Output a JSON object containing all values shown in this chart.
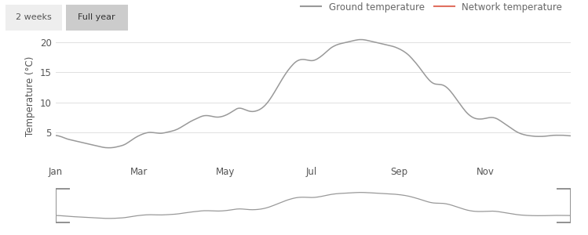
{
  "ylabel": "Temperature (°C)",
  "month_labels": [
    "Jan",
    "Mar",
    "May",
    "Jul",
    "Sep",
    "Nov"
  ],
  "month_positions": [
    0,
    59,
    120,
    181,
    243,
    304
  ],
  "ylim": [
    0,
    22
  ],
  "yticks": [
    5,
    10,
    15,
    20
  ],
  "line_color": "#999999",
  "network_line_color": "#e07060",
  "background_color": "#ffffff",
  "button1_label": "2 weeks",
  "button2_label": "Full year",
  "legend_ground": "Ground temperature",
  "legend_network": "Network temperature",
  "ground_temp": [
    4.5,
    4.4,
    4.3,
    4.1,
    3.9,
    3.8,
    3.7,
    3.6,
    3.5,
    3.4,
    3.3,
    3.2,
    3.1,
    3.0,
    2.9,
    2.8,
    2.7,
    2.6,
    2.5,
    2.4,
    2.4,
    2.4,
    2.4,
    2.5,
    2.6,
    2.7,
    2.8,
    3.0,
    3.3,
    3.6,
    3.9,
    4.2,
    4.4,
    4.6,
    4.8,
    4.9,
    5.0,
    5.0,
    4.9,
    4.9,
    4.8,
    4.8,
    4.9,
    5.0,
    5.1,
    5.2,
    5.3,
    5.5,
    5.7,
    6.0,
    6.3,
    6.5,
    6.8,
    7.0,
    7.2,
    7.4,
    7.6,
    7.8,
    7.8,
    7.8,
    7.7,
    7.6,
    7.5,
    7.5,
    7.6,
    7.7,
    7.9,
    8.1,
    8.4,
    8.7,
    9.0,
    9.1,
    9.0,
    8.8,
    8.6,
    8.5,
    8.4,
    8.5,
    8.6,
    8.8,
    9.1,
    9.5,
    10.0,
    10.6,
    11.3,
    12.0,
    12.8,
    13.5,
    14.2,
    14.9,
    15.5,
    16.0,
    16.5,
    16.9,
    17.1,
    17.2,
    17.2,
    17.1,
    17.0,
    16.9,
    17.0,
    17.2,
    17.5,
    17.8,
    18.2,
    18.6,
    19.0,
    19.3,
    19.5,
    19.7,
    19.8,
    19.9,
    20.0,
    20.1,
    20.2,
    20.3,
    20.4,
    20.5,
    20.5,
    20.5,
    20.4,
    20.3,
    20.2,
    20.1,
    20.0,
    19.9,
    19.8,
    19.7,
    19.6,
    19.5,
    19.4,
    19.3,
    19.1,
    18.9,
    18.7,
    18.4,
    18.1,
    17.7,
    17.2,
    16.7,
    16.2,
    15.6,
    15.0,
    14.4,
    13.9,
    13.4,
    13.1,
    13.0,
    13.0,
    13.0,
    12.9,
    12.6,
    12.2,
    11.7,
    11.1,
    10.5,
    9.9,
    9.3,
    8.7,
    8.2,
    7.8,
    7.5,
    7.3,
    7.2,
    7.2,
    7.2,
    7.3,
    7.4,
    7.5,
    7.5,
    7.4,
    7.2,
    6.9,
    6.6,
    6.3,
    6.0,
    5.7,
    5.4,
    5.1,
    4.9,
    4.7,
    4.6,
    4.5,
    4.4,
    4.4,
    4.3,
    4.3,
    4.3,
    4.3,
    4.3,
    4.4,
    4.4,
    4.5,
    4.5,
    4.5,
    4.5,
    4.5,
    4.5,
    4.4,
    4.4
  ]
}
